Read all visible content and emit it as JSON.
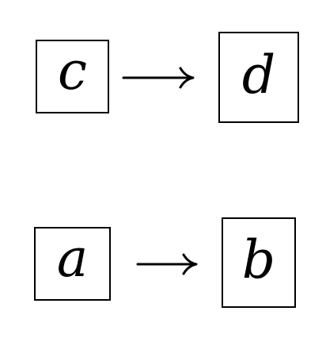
{
  "nodes": {
    "c": {
      "label": "c"
    },
    "d": {
      "label": "d"
    },
    "a": {
      "label": "a"
    },
    "b": {
      "label": "b"
    }
  },
  "edges": [
    {
      "from": "c",
      "to": "d"
    },
    {
      "from": "a",
      "to": "b"
    }
  ],
  "colors": {
    "stroke": "#000000",
    "background": "#ffffff"
  }
}
